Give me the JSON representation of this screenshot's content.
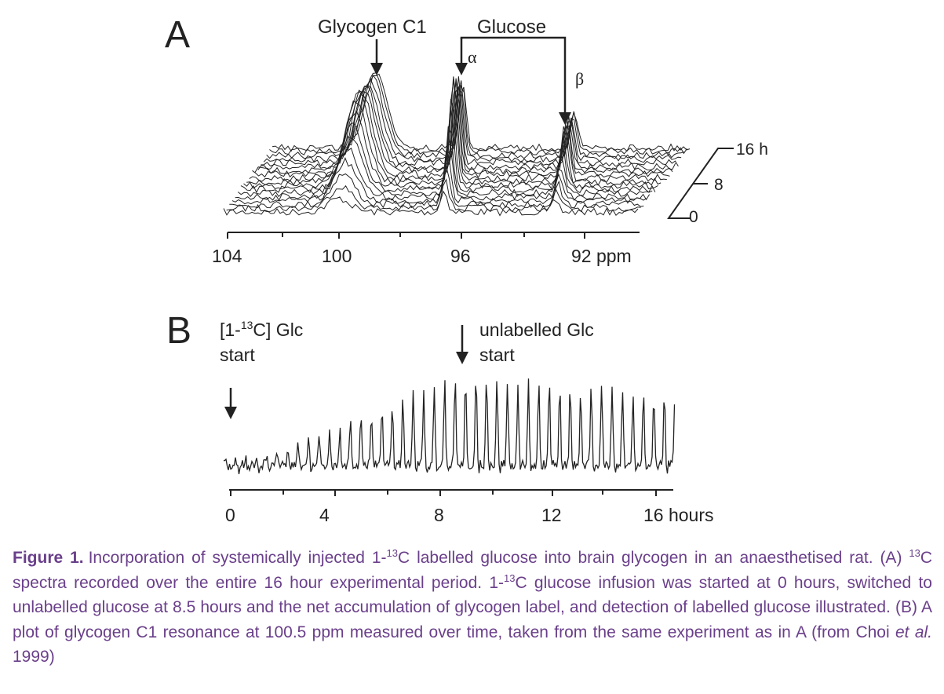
{
  "panel_a": {
    "label": "A",
    "glycogen_label": "Glycogen C1",
    "glucose_label": "Glucose",
    "alpha_label": "α",
    "beta_label": "β",
    "x_ticks": [
      "104",
      "100",
      "96",
      "92 ppm"
    ],
    "time_ticks": [
      "16 h",
      "8",
      "0"
    ]
  },
  "panel_b": {
    "label": "B",
    "start_label_1": "[1-",
    "start_label_sup": "13",
    "start_label_2": "C] Glc",
    "start_label_3": "start",
    "switch_label_1": "unlabelled Glc",
    "switch_label_2": "start",
    "x_ticks": [
      "0",
      "4",
      "8",
      "12",
      "16 hours"
    ]
  },
  "caption": {
    "figure_label": "Figure 1.",
    "p1": "Incorporation of systemically injected 1-",
    "sup1": "13",
    "p2": "C labelled glucose into brain glycogen in an anaesthetised rat. (A) ",
    "sup2": "13",
    "p3": "C spectra recorded over the entire 16 hour experimental period. 1-",
    "sup3": "13",
    "p4": "C glucose infusion was started at 0 hours, switched to unlabelled glucose at 8.5 hours and the net accumulation of glycogen label, and detection of labelled glucose illustrated. (B) A plot of glycogen C1 resonance at 100.5 ppm measured over time, taken from the same experiment as in A (from Choi ",
    "italic": "et al.",
    "p5": " 1999)"
  }
}
